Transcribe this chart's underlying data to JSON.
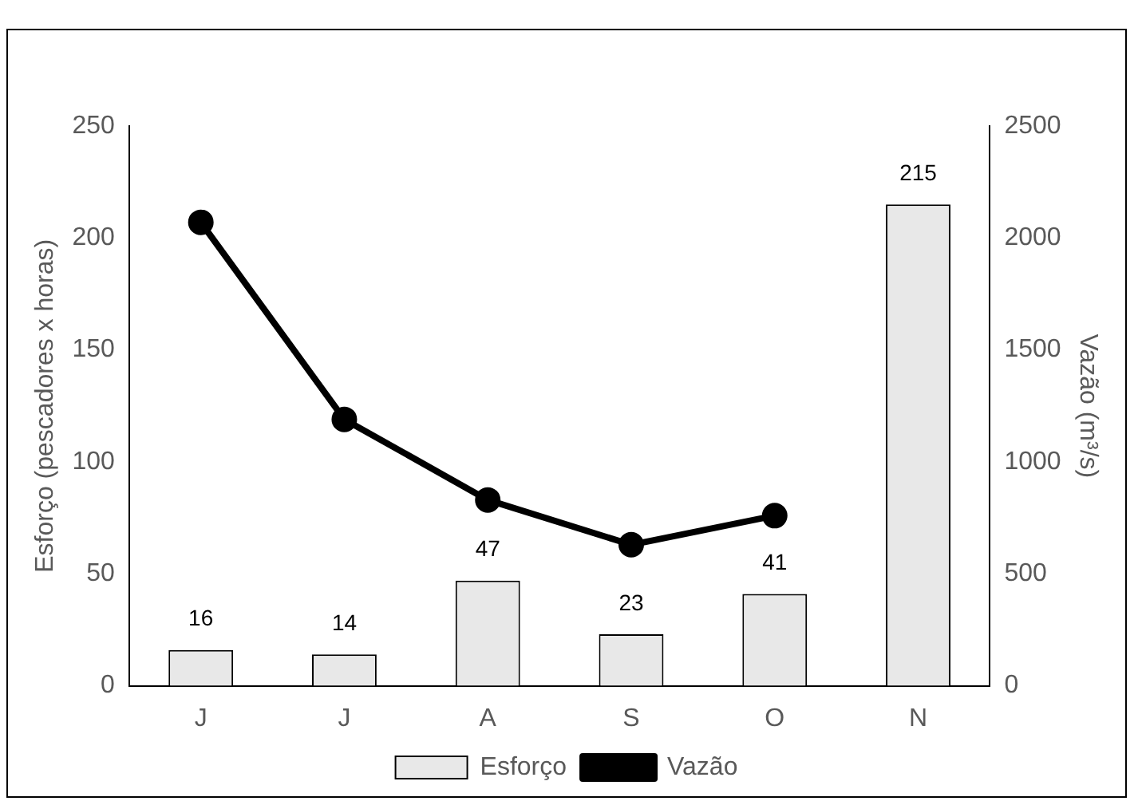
{
  "chart_data": {
    "type": "bar",
    "categories": [
      "J",
      "J",
      "A",
      "S",
      "O",
      "N"
    ],
    "ylabel": "Esforço (pescadores x horas)",
    "y2label": "Vazão (m³/s)",
    "ylim": [
      0,
      250
    ],
    "yticks": [
      0,
      50,
      100,
      150,
      200,
      250
    ],
    "y2lim": [
      0,
      2500
    ],
    "y2ticks": [
      0,
      500,
      1000,
      1500,
      2000,
      2500
    ],
    "grid": false,
    "legend": "bottom",
    "series": [
      {
        "name": "Esforço",
        "color": "#e8e8e8",
        "values": [
          16,
          14,
          47,
          23,
          41,
          215
        ],
        "value_labels": [
          "16",
          "14",
          "47",
          "23",
          "41",
          "215"
        ]
      },
      {
        "name": "Vazão",
        "type": "line",
        "axis": "y2",
        "color": "#000000",
        "marker": "circle",
        "line_style": "solid",
        "values": [
          2070,
          1190,
          830,
          630,
          760,
          null
        ]
      }
    ]
  }
}
